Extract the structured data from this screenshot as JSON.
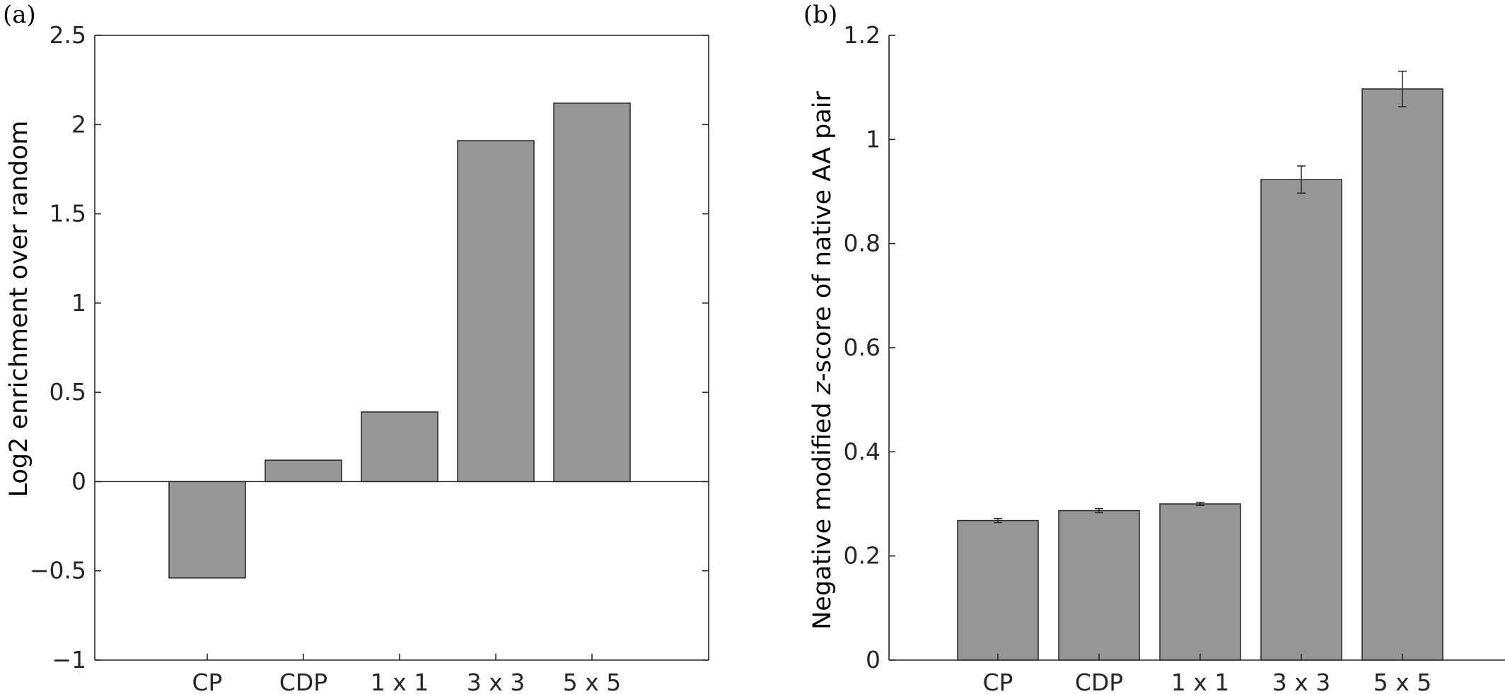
{
  "chart_data": [
    {
      "type": "bar",
      "panel_label": "(a)",
      "categories": [
        "CP",
        "CDP",
        "1 x 1",
        "3 x 3",
        "5 x 5"
      ],
      "values": [
        -0.54,
        0.12,
        0.39,
        1.91,
        2.12
      ],
      "ylabel": "Log2 enrichment over random",
      "ylim": [
        -1,
        2.5
      ],
      "yticks": [
        -1,
        -0.5,
        0,
        0.5,
        1,
        1.5,
        2,
        2.5
      ],
      "ytick_labels": [
        "−1",
        "−0.5",
        "0",
        "0.5",
        "1",
        "1.5",
        "2",
        "2.5"
      ],
      "grid": false,
      "bar_color": "#969696"
    },
    {
      "type": "bar",
      "panel_label": "(b)",
      "categories": [
        "CP",
        "CDP",
        "1 x 1",
        "3 x 3",
        "5 x 5"
      ],
      "values": [
        0.268,
        0.287,
        0.3,
        0.923,
        1.097
      ],
      "errors": [
        0.004,
        0.004,
        0.003,
        0.026,
        0.034
      ],
      "ylabel_parts": [
        "Negative modified ",
        "z",
        "-score of native AA pair"
      ],
      "ylim": [
        0,
        1.2
      ],
      "yticks": [
        0,
        0.2,
        0.4,
        0.6,
        0.8,
        1,
        1.2
      ],
      "ytick_labels": [
        "0",
        "0.2",
        "0.4",
        "0.6",
        "0.8",
        "1",
        "1.2"
      ],
      "grid": false,
      "bar_color": "#969696"
    }
  ]
}
